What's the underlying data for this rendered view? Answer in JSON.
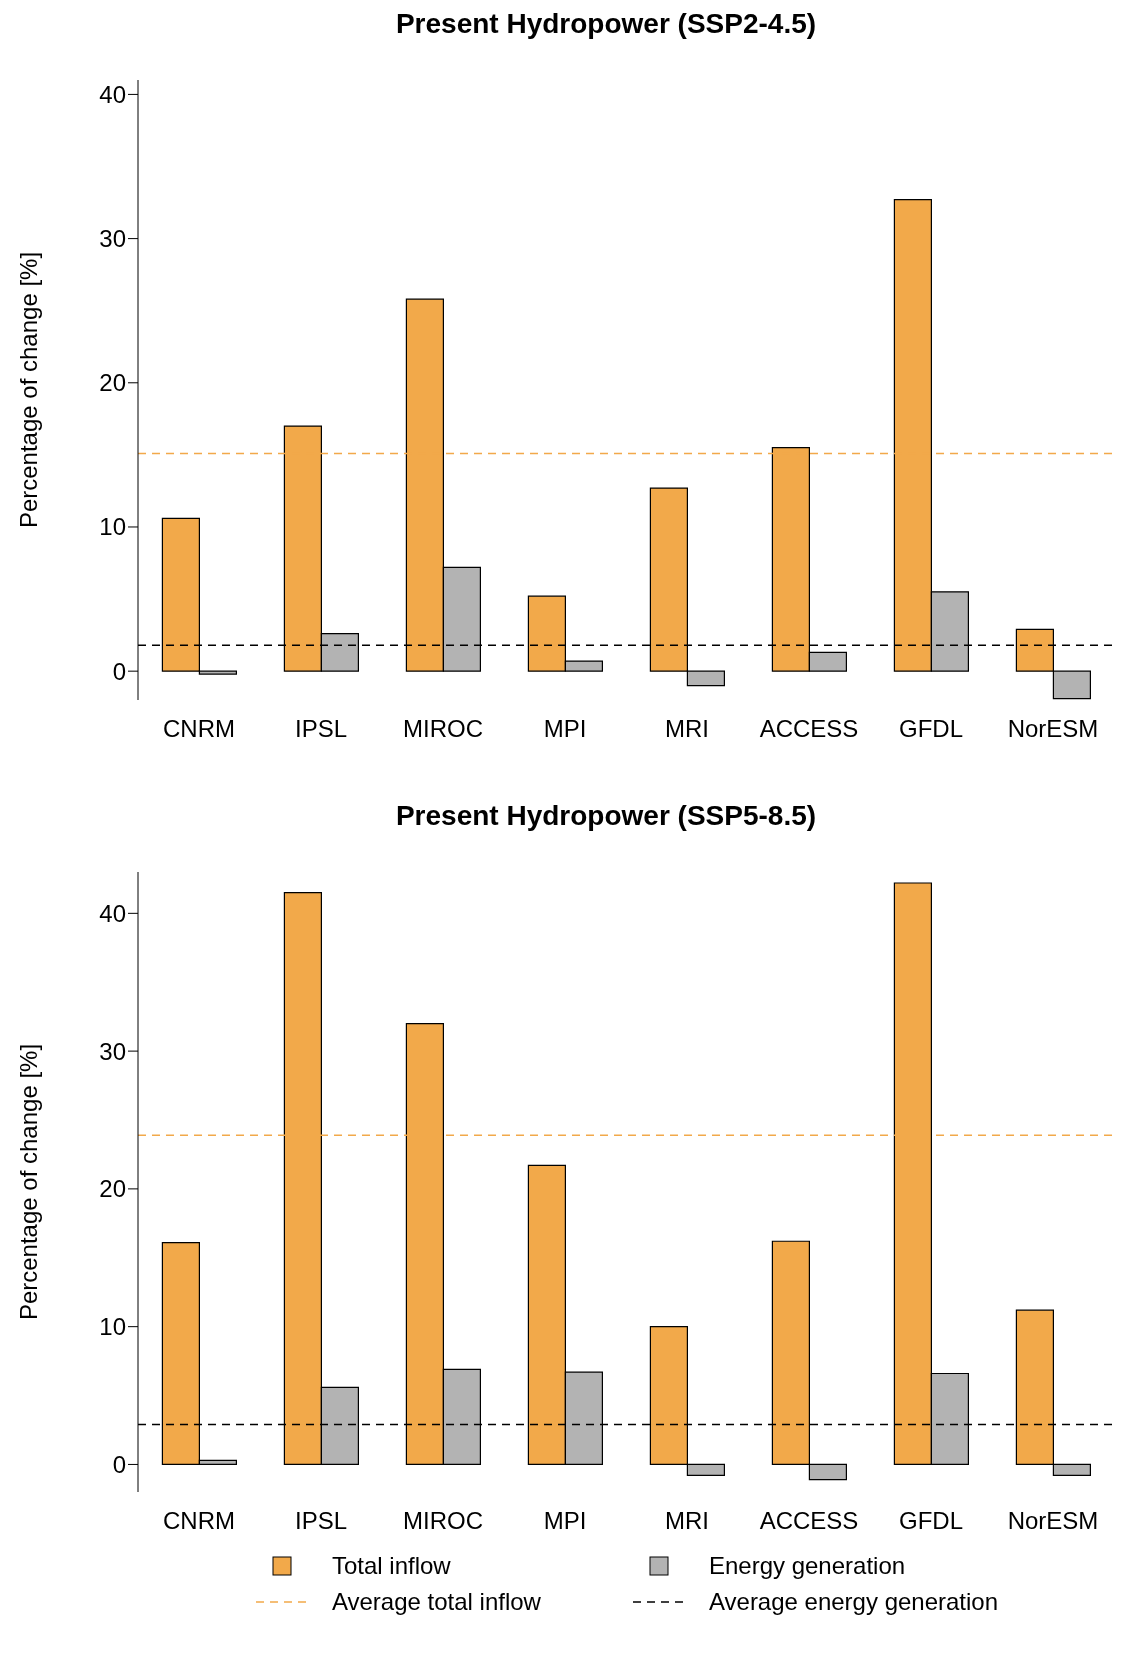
{
  "chart_data": [
    {
      "type": "bar",
      "title": "Present Hydropower (SSP2-4.5)",
      "ylabel": "Percentage of change [%]",
      "categories": [
        "CNRM",
        "IPSL",
        "MIROC",
        "MPI",
        "MRI",
        "ACCESS",
        "GFDL",
        "NorESM"
      ],
      "series": [
        {
          "color": "#f2a94a",
          "values": [
            10.6,
            17.0,
            25.8,
            5.2,
            12.7,
            15.5,
            32.7,
            2.9
          ]
        },
        {
          "color": "#b3b3b3",
          "values": [
            -0.2,
            2.6,
            7.2,
            0.7,
            -1.0,
            1.3,
            5.5,
            -1.9
          ]
        }
      ],
      "ylim": [
        -2,
        41
      ],
      "yticks": [
        0,
        10,
        20,
        30,
        40
      ],
      "grid": false,
      "legend": false,
      "ref_lines": [
        {
          "axis": "y",
          "value": 15.1,
          "color": "#f2a94a",
          "line_style": "dashed"
        },
        {
          "axis": "y",
          "value": 1.8,
          "color": "#000000",
          "line_style": "dashed"
        }
      ]
    },
    {
      "type": "bar",
      "title": "Present Hydropower (SSP5-8.5)",
      "ylabel": "Percentage of change [%]",
      "categories": [
        "CNRM",
        "IPSL",
        "MIROC",
        "MPI",
        "MRI",
        "ACCESS",
        "GFDL",
        "NorESM"
      ],
      "series": [
        {
          "name": "Total inflow",
          "color": "#f2a94a",
          "values": [
            16.1,
            41.5,
            32.0,
            21.7,
            10.0,
            16.2,
            42.2,
            11.2
          ]
        },
        {
          "name": "Energy generation",
          "color": "#b3b3b3",
          "values": [
            0.3,
            5.6,
            6.9,
            6.7,
            -0.8,
            -1.1,
            6.6,
            -0.8
          ]
        }
      ],
      "ylim": [
        -2,
        43
      ],
      "yticks": [
        0,
        10,
        20,
        30,
        40
      ],
      "grid": false,
      "legend": "bottom",
      "ref_lines": [
        {
          "axis": "y",
          "value": 23.9,
          "label": "Average total inflow",
          "color": "#f2a94a",
          "line_style": "dashed"
        },
        {
          "axis": "y",
          "value": 2.9,
          "label": "Average energy generation",
          "color": "#000000",
          "line_style": "dashed"
        }
      ]
    }
  ]
}
